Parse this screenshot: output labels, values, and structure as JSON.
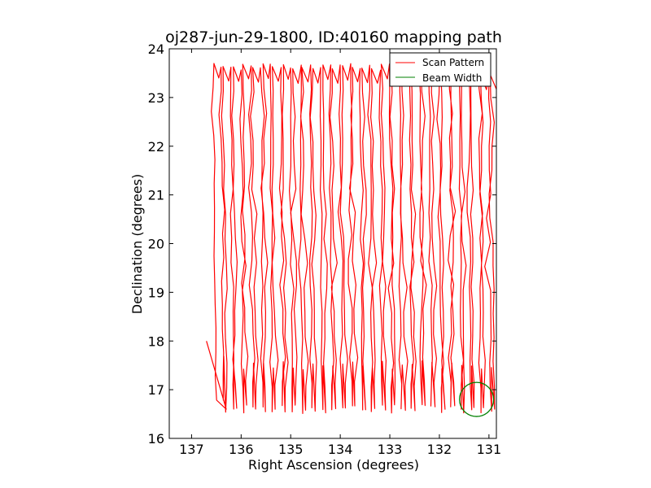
{
  "chart_data": {
    "type": "line",
    "title": "oj287-jun-29-1800, ID:40160 mapping path",
    "xlabel": "Right Ascension (degrees)",
    "ylabel": "Declination (degrees)",
    "xlim": [
      137.45,
      130.85
    ],
    "ylim": [
      16,
      24
    ],
    "x_ticks": [
      137,
      136,
      135,
      134,
      133,
      132,
      131
    ],
    "x_tick_labels": [
      "137",
      "136",
      "135",
      "134",
      "133",
      "132",
      "131"
    ],
    "y_ticks": [
      16,
      17,
      18,
      19,
      20,
      21,
      22,
      23,
      24
    ],
    "y_tick_labels": [
      "16",
      "17",
      "18",
      "19",
      "20",
      "21",
      "22",
      "23",
      "24"
    ],
    "grid": false,
    "legend_position": "top-right",
    "colors": {
      "scan": "#ff0000",
      "beam": "#008000",
      "axis": "#000000"
    },
    "series": [
      {
        "name": "Scan Pattern",
        "kind": "raster-scan",
        "ra_start": 136.5,
        "ra_step": -0.1,
        "columns": 57,
        "dec_min": 16.5,
        "dec_max": 23.7,
        "lead_in": [
          [
            136.7,
            18.0
          ],
          [
            136.3,
            16.6
          ]
        ]
      },
      {
        "name": "Beam Width",
        "kind": "circle",
        "center": [
          131.25,
          16.8
        ],
        "radius_dec": 0.35
      }
    ]
  }
}
